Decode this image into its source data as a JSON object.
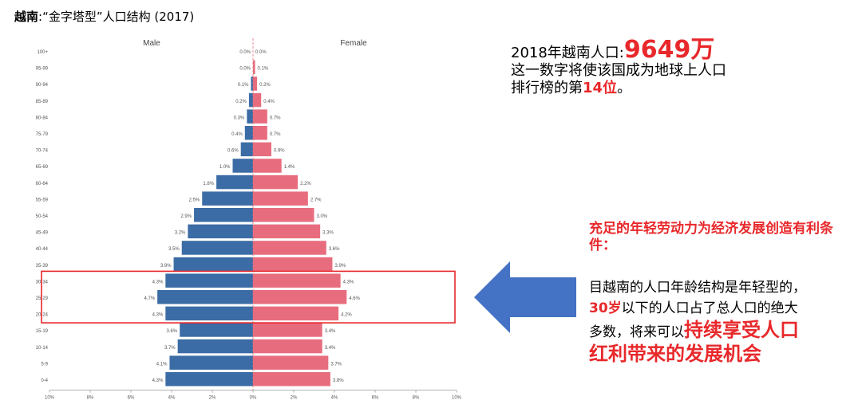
{
  "title": {
    "strong": "越南",
    "rest": ":“金字塔型”人口结构 (2017)"
  },
  "stat": {
    "prefix": "2018年越南人口:",
    "value": "9649万",
    "line2": "这一数字将使该国成为地球上人口",
    "line3_a": "排行榜的第",
    "line3_hl": "14位",
    "line3_b": "。"
  },
  "note": {
    "title": "充足的年轻劳动力为经济发展创造有利条件：",
    "p1": "目越南的人口年龄结构是年轻型的，",
    "p2_hl": "30岁",
    "p2": "以下的人口占了总人口的绝大",
    "p3": "多数，将来可以",
    "p3_hl": "持续享受人口",
    "p4_hl": "红利带来的发展机会"
  },
  "colors": {
    "male": "#3b6ca5",
    "female": "#e76d7e",
    "highlight": "#e8282b",
    "arrow": "#4472c4"
  },
  "arrow_icon": "arrow-left-icon",
  "chart_data": {
    "type": "bar",
    "orientation": "horizontal",
    "categories": [
      "100+",
      "95-99",
      "90-94",
      "85-89",
      "80-84",
      "75-79",
      "70-74",
      "65-69",
      "60-64",
      "55-59",
      "50-54",
      "45-49",
      "40-44",
      "35-39",
      "30-34",
      "25-29",
      "20-24",
      "15-19",
      "10-14",
      "5-9",
      "0-4"
    ],
    "series": [
      {
        "name": "Male",
        "values": [
          0.0,
          0.0,
          0.1,
          0.2,
          0.3,
          0.4,
          0.6,
          1.0,
          1.8,
          2.5,
          2.9,
          3.2,
          3.5,
          3.9,
          4.3,
          4.7,
          4.3,
          3.6,
          3.7,
          4.1,
          4.3
        ]
      },
      {
        "name": "Female",
        "values": [
          0.0,
          0.1,
          0.2,
          0.4,
          0.7,
          0.7,
          0.9,
          1.4,
          2.2,
          2.7,
          3.0,
          3.3,
          3.6,
          3.9,
          4.3,
          4.6,
          4.2,
          3.4,
          3.4,
          3.7,
          3.8
        ]
      }
    ],
    "xticks": [
      "10%",
      "8%",
      "6%",
      "4%",
      "2%",
      "0%",
      "2%",
      "4%",
      "6%",
      "8%",
      "10%"
    ],
    "xlim": [
      -10,
      10
    ],
    "highlight_categories": [
      "30-34",
      "25-29",
      "20-24"
    ],
    "grid": false
  }
}
